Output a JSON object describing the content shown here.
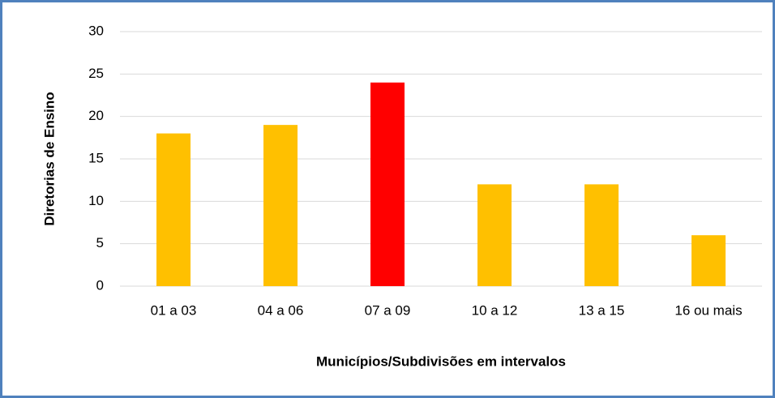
{
  "chart_data": {
    "type": "bar",
    "x_label": "Municípios/Subdivisões em intervalos",
    "y_label": "Diretorias de Ensino",
    "categories": [
      "01 a 03",
      "04 a 06",
      "07 a 09",
      "10 a 12",
      "13 a 15",
      "16 ou mais"
    ],
    "values": [
      18,
      19,
      24,
      12,
      12,
      6
    ],
    "colors": [
      "#ffc000",
      "#ffc000",
      "#ff0000",
      "#ffc000",
      "#ffc000",
      "#ffc000"
    ],
    "ylim": [
      0,
      30
    ],
    "yticks": [
      0,
      5,
      10,
      15,
      20,
      25,
      30
    ],
    "grid": true
  }
}
